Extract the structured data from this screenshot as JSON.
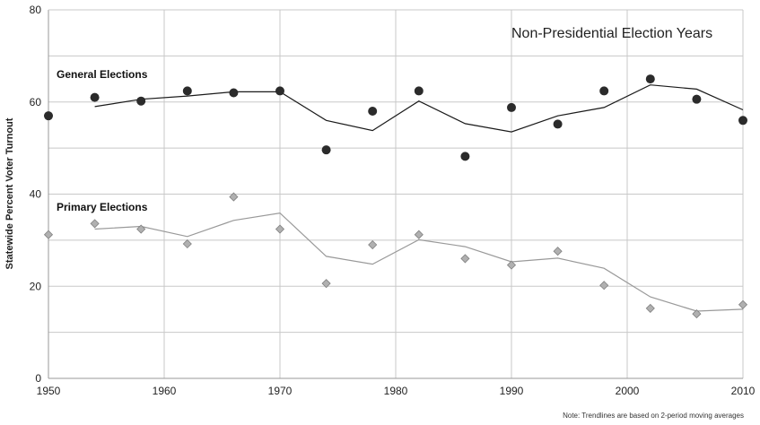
{
  "chart_data": {
    "type": "scatter",
    "title": "Non-Presidential Election Years",
    "xlabel": "",
    "ylabel": "Statewide Percent Voter Turnout",
    "xlim": [
      1950,
      2010
    ],
    "ylim": [
      0,
      80
    ],
    "x_ticks": [
      "1950",
      "1960",
      "1970",
      "1980",
      "1990",
      "2000",
      "2010"
    ],
    "y_ticks": [
      "0",
      "20",
      "40",
      "60",
      "80"
    ],
    "grid": true,
    "note": "Note: Trendlines are based on 2-period moving averages",
    "series": [
      {
        "name": "General Elections",
        "marker": "circle",
        "color": "#2b2b2b",
        "x": [
          1950,
          1954,
          1958,
          1962,
          1966,
          1970,
          1974,
          1978,
          1982,
          1986,
          1990,
          1994,
          1998,
          2002,
          2006,
          2010
        ],
        "y": [
          57.0,
          61.0,
          60.2,
          62.4,
          62.0,
          62.4,
          49.6,
          58.0,
          62.4,
          48.2,
          58.8,
          55.2,
          62.4,
          65.0,
          60.6,
          56.0
        ],
        "trend_y": [
          null,
          59.0,
          60.6,
          61.3,
          62.2,
          62.2,
          56.0,
          53.8,
          60.2,
          55.3,
          53.5,
          57.0,
          58.8,
          63.7,
          62.8,
          58.3
        ]
      },
      {
        "name": "Primary Elections",
        "marker": "diamond",
        "color": "#b0b0b0",
        "x": [
          1950,
          1954,
          1958,
          1962,
          1966,
          1970,
          1974,
          1978,
          1982,
          1986,
          1990,
          1994,
          1998,
          2002,
          2006,
          2010
        ],
        "y": [
          31.2,
          33.6,
          32.4,
          29.2,
          39.4,
          32.4,
          20.6,
          29.0,
          31.2,
          26.0,
          24.6,
          27.6,
          20.2,
          15.2,
          14.0,
          16.0
        ],
        "trend_y": [
          null,
          32.4,
          33.0,
          30.8,
          34.3,
          35.9,
          26.5,
          24.8,
          30.1,
          28.6,
          25.3,
          26.1,
          23.9,
          17.7,
          14.6,
          15.0
        ]
      }
    ]
  }
}
